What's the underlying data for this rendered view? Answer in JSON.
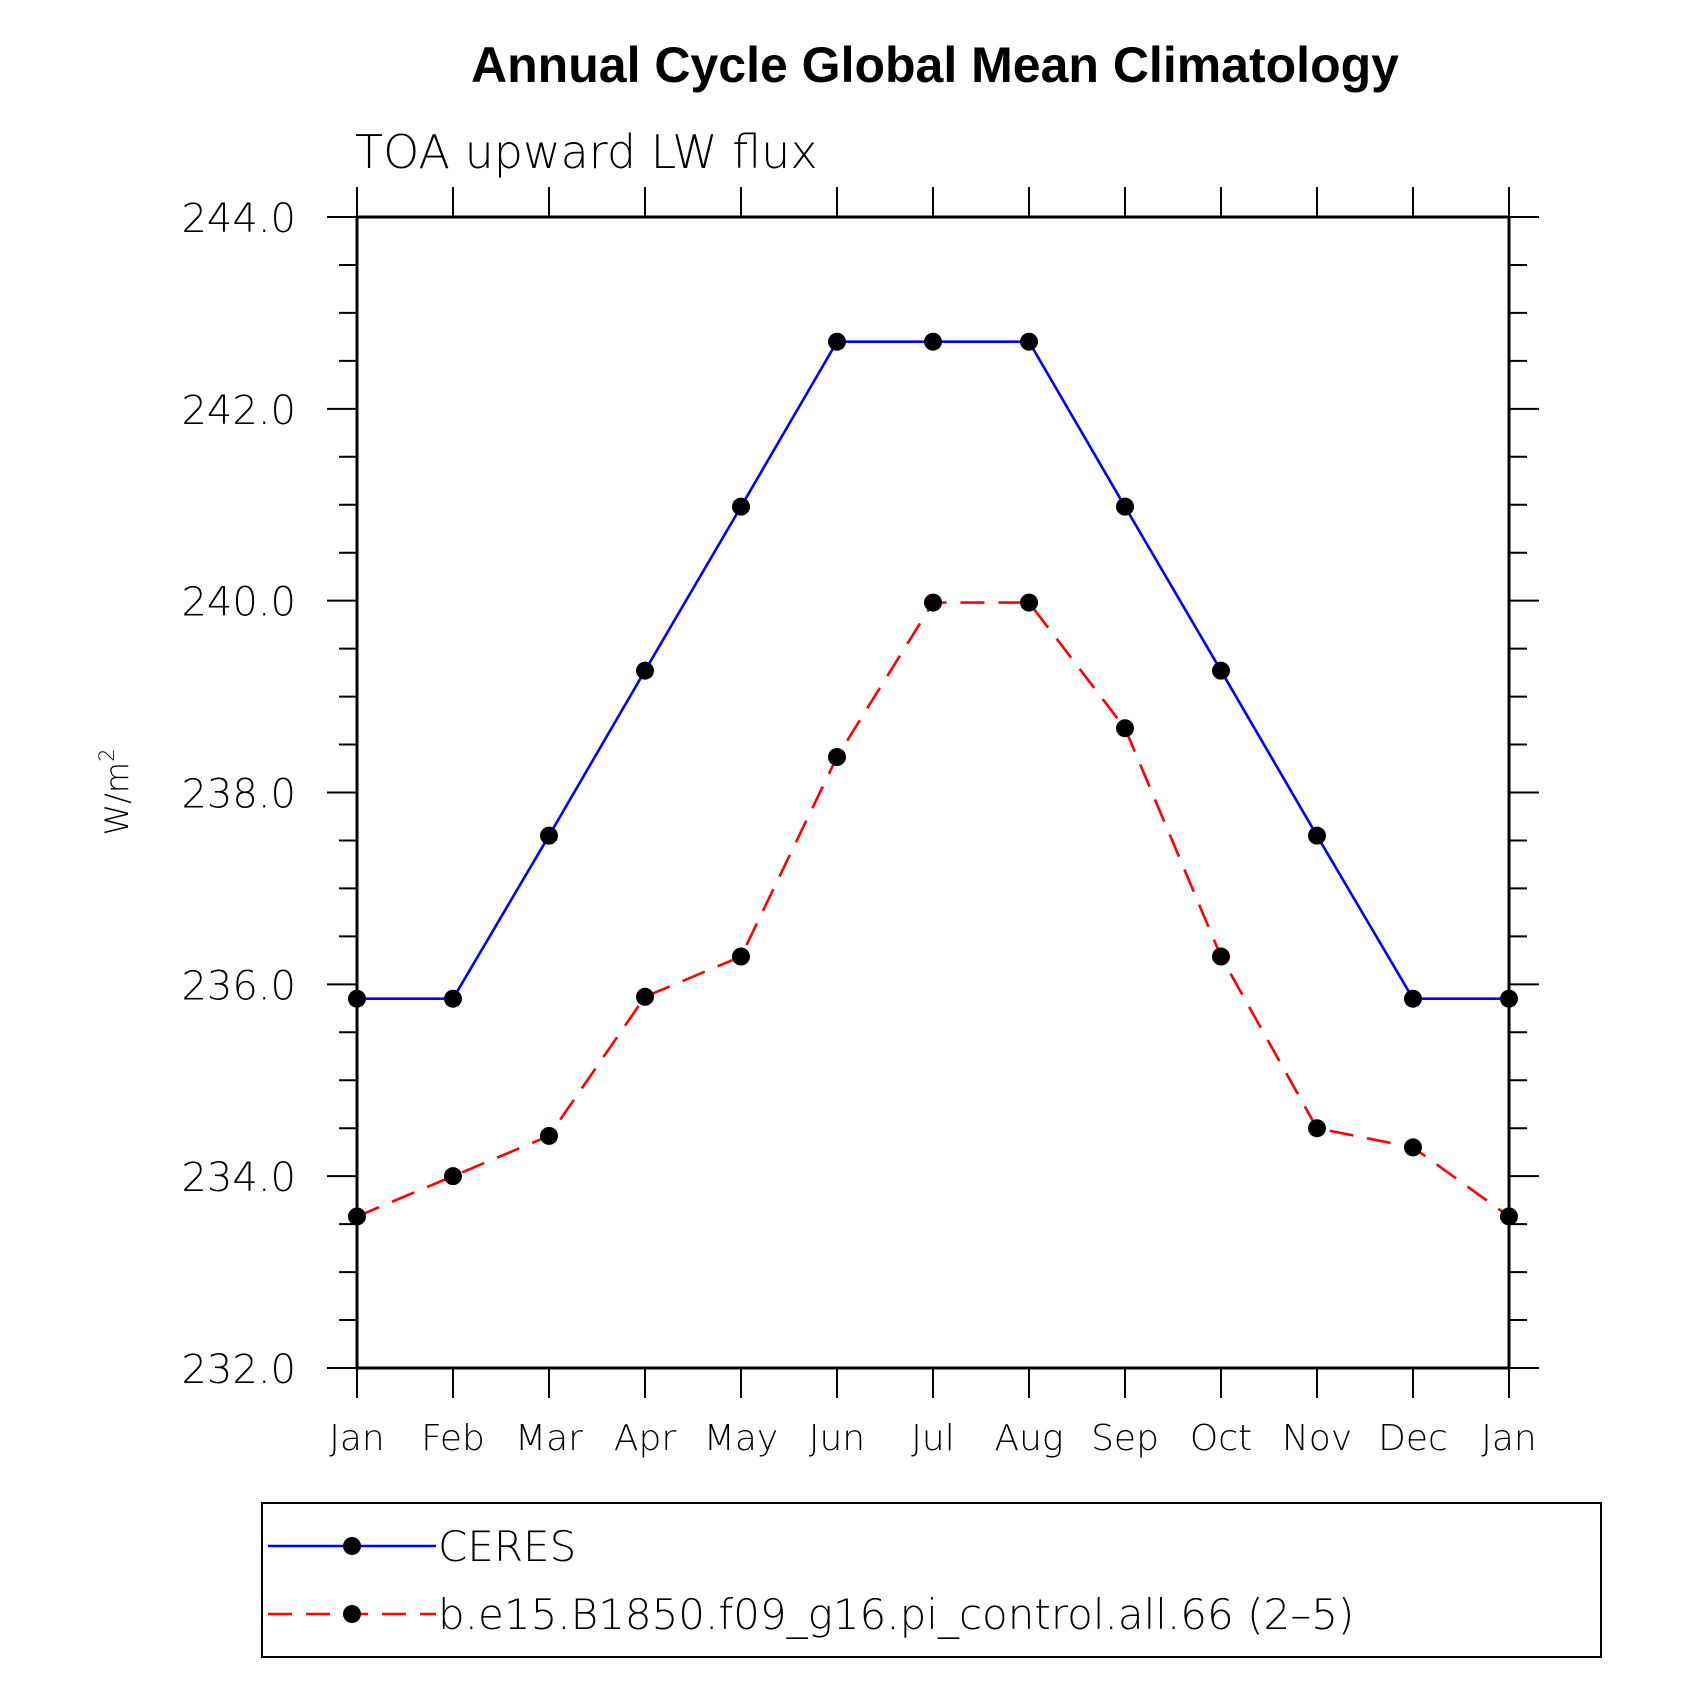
{
  "chart_data": {
    "type": "line",
    "title": "Annual Cycle Global Mean Climatology",
    "subtitle": "TOA upward LW flux",
    "ylabel": "W/m",
    "ylabel_superscript": "2",
    "ylim": [
      232.0,
      244.0
    ],
    "yticks": [
      "232.0",
      "234.0",
      "236.0",
      "238.0",
      "240.0",
      "242.0",
      "244.0"
    ],
    "categories": [
      "Jan",
      "Feb",
      "Mar",
      "Apr",
      "May",
      "Jun",
      "Jul",
      "Aug",
      "Sep",
      "Oct",
      "Nov",
      "Dec",
      "Jan"
    ],
    "series": [
      {
        "name": "CERES",
        "color": "#0000ff",
        "dash": "solid",
        "marker": "filled-circle",
        "values": [
          235.85,
          235.85,
          237.55,
          239.27,
          240.98,
          242.7,
          242.7,
          242.7,
          240.98,
          239.27,
          237.55,
          235.85,
          235.85
        ]
      },
      {
        "name": "b.e15.B1850.f09_g16.pi_control.all.66 (2–5)",
        "color": "#ff0000",
        "dash": "dashed",
        "marker": "filled-circle",
        "values": [
          233.58,
          234.0,
          234.42,
          235.87,
          236.29,
          238.37,
          239.98,
          239.98,
          238.67,
          236.29,
          234.5,
          234.3,
          233.58
        ]
      }
    ],
    "grid": false,
    "legend_position": "bottom"
  }
}
